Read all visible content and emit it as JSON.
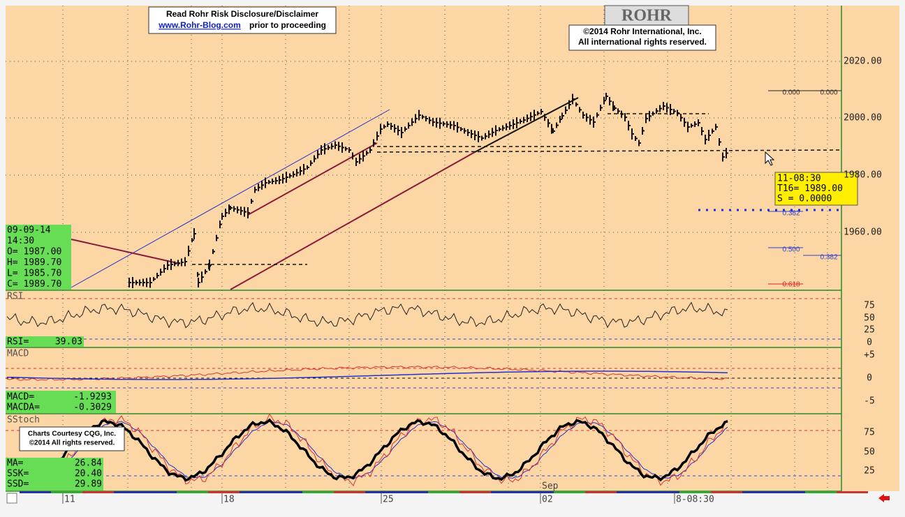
{
  "header": {
    "disclaimer": [
      "Read Rohr Risk Disclosure/Disclaimer",
      "www.Rohr-Blog.com",
      "prior to proceeding"
    ],
    "copyright": [
      "©2014  Rohr International, Inc.",
      "All international rights reserved."
    ],
    "logo": "ROHR"
  },
  "price_panel": {
    "axis": [
      "2020.00",
      "2000.00",
      "1980.00",
      "1960.00"
    ],
    "bar_info": [
      "09-09-14",
      "14:30",
      "O= 1987.00",
      "H= 1989.70",
      "L= 1985.70",
      "C= 1989.70"
    ],
    "cursor_info": [
      "11-08:30",
      "T16= 1989.00",
      "S   =  0.0000"
    ],
    "fib_labels": [
      "0.000",
      "0.000",
      "0.382",
      "0.500",
      "0.382",
      "0.618"
    ]
  },
  "rsi_panel": {
    "label": "RSI",
    "axis": [
      "75",
      "50",
      "25",
      "0"
    ],
    "readout_name": "RSI=",
    "readout_value": "39.03"
  },
  "macd_panel": {
    "label": "MACD",
    "axis": [
      "+5",
      "0",
      "-5"
    ],
    "readouts": [
      [
        "MACD=",
        "-1.9293"
      ],
      [
        "MACDA=",
        "-0.3029"
      ]
    ]
  },
  "stoch_panel": {
    "label": "SStoch",
    "axis": [
      "75",
      "50",
      "25"
    ],
    "readouts": [
      [
        "MA=",
        "26.84"
      ],
      [
        "SSK=",
        "20.40"
      ],
      [
        "SSD=",
        "29.89"
      ]
    ],
    "courtesy": [
      "Charts Courtesy CQG, Inc.",
      "©2014 All rights reserved."
    ]
  },
  "time_axis": {
    "dates": [
      "11",
      "18",
      "25",
      "02",
      "8-08:30"
    ],
    "month": "Sep"
  }
}
